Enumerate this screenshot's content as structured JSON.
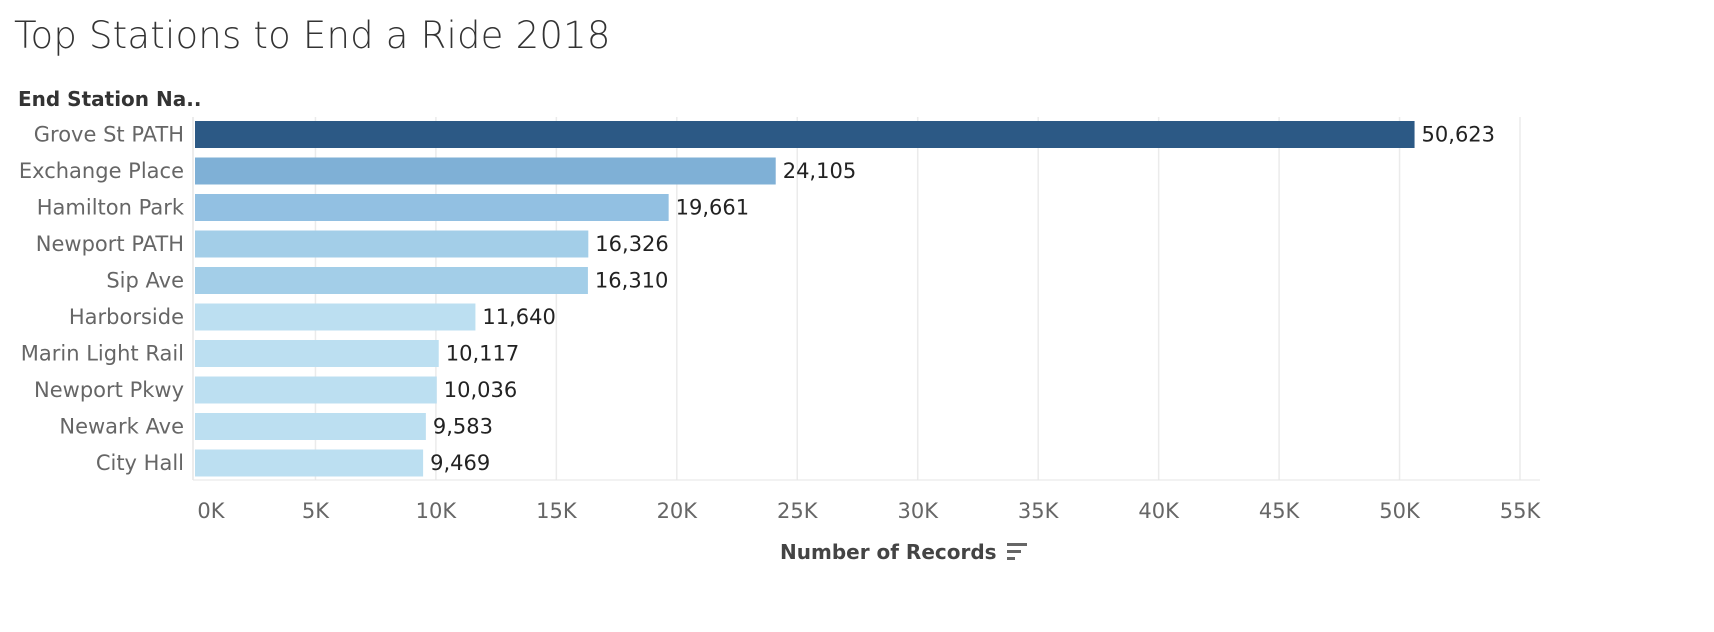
{
  "title": "Top Stations to End a Ride 2018",
  "row_header": "End Station Na..",
  "x_axis_label": "Number of Records",
  "icons": {
    "sort": "sort-descending-icon"
  },
  "colors": {
    "grid": "#ebebeb",
    "label": "#666666",
    "value": "#222222"
  },
  "chart_data": {
    "type": "bar",
    "orientation": "horizontal",
    "title": "Top Stations to End a Ride 2018",
    "ylabel": "End Station Na..",
    "xlabel": "Number of Records",
    "categories": [
      "Grove St PATH",
      "Exchange Place",
      "Hamilton Park",
      "Newport PATH",
      "Sip Ave",
      "Harborside",
      "Marin Light Rail",
      "Newport Pkwy",
      "Newark Ave",
      "City Hall"
    ],
    "values": [
      50623,
      24105,
      19661,
      16326,
      16310,
      11640,
      10117,
      10036,
      9583,
      9469
    ],
    "value_labels": [
      "50,623",
      "24,105",
      "19,661",
      "16,326",
      "16,310",
      "11,640",
      "10,117",
      "10,036",
      "9,583",
      "9,469"
    ],
    "bar_colors": [
      "#2c5985",
      "#7fb0d6",
      "#92c0e2",
      "#a3cee8",
      "#a3cee8",
      "#bcdff1",
      "#bcdff1",
      "#bcdff1",
      "#bcdff1",
      "#bcdff1"
    ],
    "xlim": [
      0,
      55000
    ],
    "xticks": [
      0,
      5000,
      10000,
      15000,
      20000,
      25000,
      30000,
      35000,
      40000,
      45000,
      50000,
      55000
    ],
    "xtick_labels": [
      "0K",
      "5K",
      "10K",
      "15K",
      "20K",
      "25K",
      "30K",
      "35K",
      "40K",
      "45K",
      "50K",
      "55K"
    ],
    "grid": true,
    "legend": "none"
  }
}
